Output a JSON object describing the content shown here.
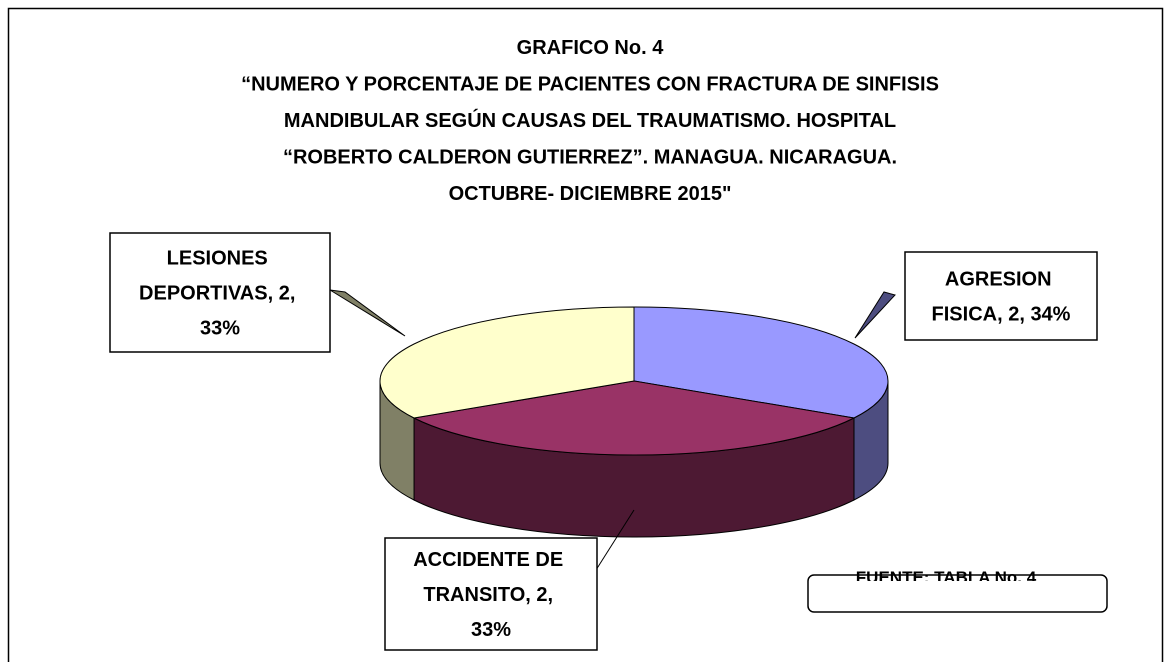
{
  "chart_data": {
    "type": "pie3d",
    "title": [
      "GRAFICO No. 4",
      "“NUMERO Y PORCENTAJE DE PACIENTES CON FRACTURA DE SINFISIS",
      "MANDIBULAR SEGÚN CAUSAS DEL TRAUMATISMO. HOSPITAL",
      "“ROBERTO CALDERON GUTIERREZ”. MANAGUA. NICARAGUA.",
      "OCTUBRE- DICIEMBRE 2015\""
    ],
    "categories": [
      "AGRESION FISICA",
      "ACCIDENTE DE TRANSITO",
      "LESIONES DEPORTIVAS"
    ],
    "values": [
      2,
      2,
      2
    ],
    "value_labels": [
      "AGRESION FISICA, 2, 34%",
      "ACCIDENTE DE TRANSITO, 2, 33%",
      "LESIONES DEPORTIVAS, 2, 33%"
    ],
    "colors": [
      "#9999ff",
      "#993366",
      "#ffffcc"
    ],
    "side_colors": [
      "#4d4d80",
      "#4d1933",
      "#808066"
    ],
    "annotation": "FUENTE: TABLA No. 4"
  }
}
